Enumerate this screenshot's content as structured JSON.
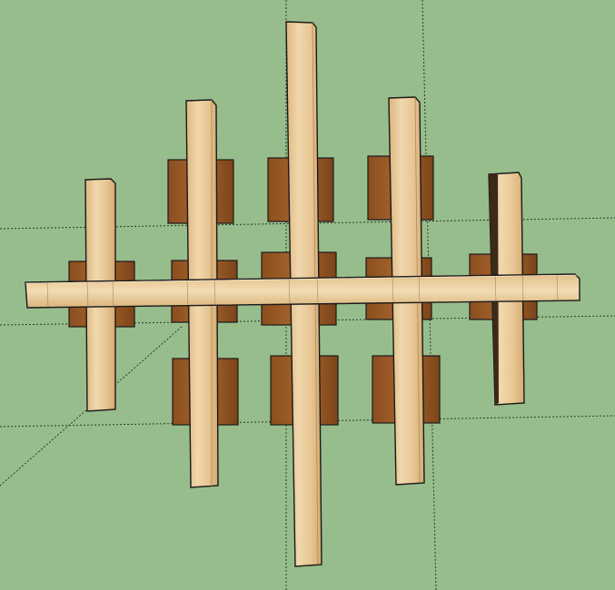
{
  "viewport": {
    "background": "#98bd8d"
  },
  "model": {
    "pale_wood": "#e8c99a",
    "pale_wood_light": "#f0d6a9",
    "dark_wood": "#9a5a26",
    "dark_wood_light": "#b06e35",
    "edge": "#1a1a1a"
  }
}
